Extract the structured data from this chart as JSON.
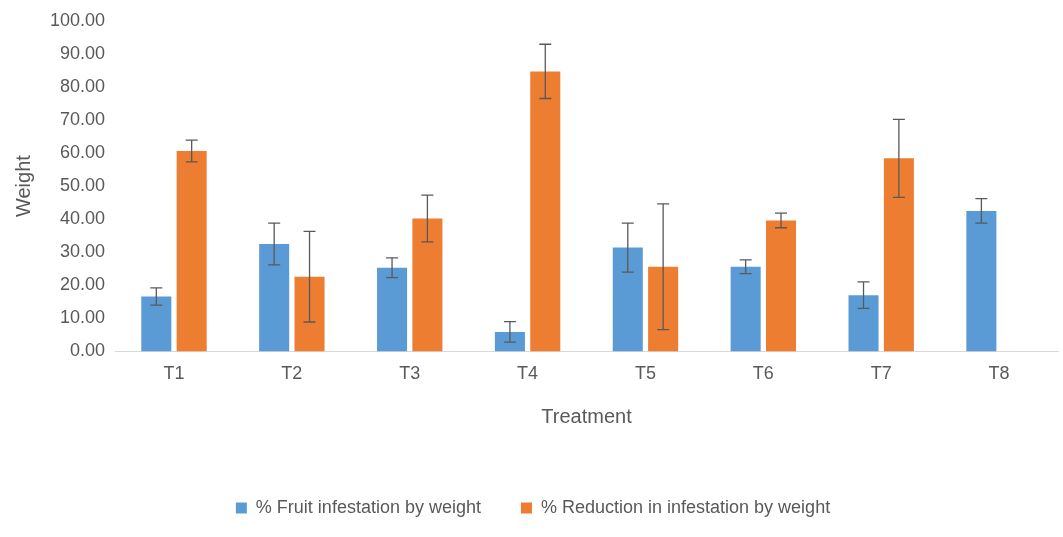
{
  "chart_data": {
    "type": "bar",
    "xlabel": "Treatment",
    "ylabel": "Weight",
    "categories": [
      "T1",
      "T2",
      "T3",
      "T4",
      "T5",
      "T6",
      "T7",
      "T8"
    ],
    "series": [
      {
        "name": "% Fruit infestation by weight",
        "color": "#5b9bd5",
        "values": [
          16.6,
          32.5,
          25.3,
          5.9,
          31.4,
          25.6,
          17.0,
          42.5
        ],
        "errors": [
          2.6,
          6.3,
          3.0,
          3.1,
          7.4,
          2.1,
          4.0,
          3.7
        ]
      },
      {
        "name": "% Reduction in infestation by weight",
        "color": "#ed7d31",
        "values": [
          60.6,
          22.6,
          40.2,
          84.7,
          25.6,
          39.6,
          58.4,
          null
        ],
        "errors": [
          3.3,
          13.7,
          7.1,
          8.2,
          19.0,
          2.2,
          11.8,
          null
        ]
      }
    ],
    "ylim": [
      0,
      100
    ],
    "yticks": [
      {
        "value": 0,
        "label": "0.00"
      },
      {
        "value": 10,
        "label": "10.00"
      },
      {
        "value": 20,
        "label": "20.00"
      },
      {
        "value": 30,
        "label": "30.00"
      },
      {
        "value": 40,
        "label": "40.00"
      },
      {
        "value": 50,
        "label": "50.00"
      },
      {
        "value": 60,
        "label": "60.00"
      },
      {
        "value": 70,
        "label": "70.00"
      },
      {
        "value": 80,
        "label": "80.00"
      },
      {
        "value": 90,
        "label": "90.00"
      },
      {
        "value": 100,
        "label": "100.00"
      }
    ],
    "grid": false,
    "legend": "bottom"
  }
}
